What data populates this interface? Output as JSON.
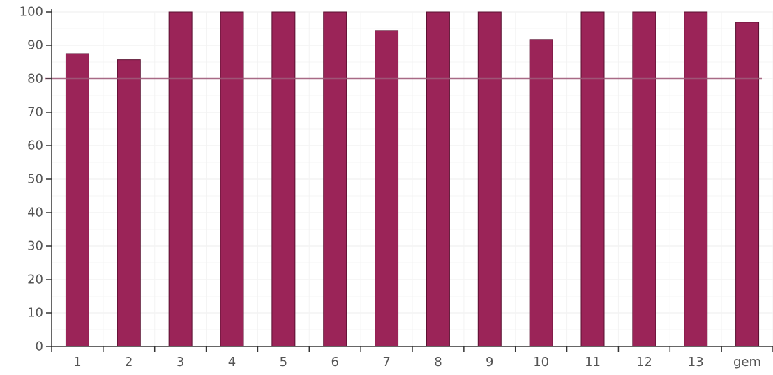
{
  "chart_data": {
    "type": "bar",
    "categories": [
      "1",
      "2",
      "3",
      "4",
      "5",
      "6",
      "7",
      "8",
      "9",
      "10",
      "11",
      "12",
      "13",
      "gem"
    ],
    "values": [
      87.5,
      85.7,
      100,
      100,
      100,
      100,
      94.4,
      100,
      100,
      91.7,
      100,
      100,
      100,
      96.9
    ],
    "ylim": [
      0,
      100
    ],
    "yticks": [
      0,
      10,
      20,
      30,
      40,
      50,
      60,
      70,
      80,
      90,
      100
    ],
    "reference_line": 80,
    "grid": true,
    "title": "",
    "xlabel": "",
    "ylabel": ""
  },
  "colors": {
    "bar_fill": "#9b2458",
    "bar_stroke": "#5a0f30",
    "reference_line": "#9e5a7a",
    "axis": "#333333",
    "grid": "#eeeeee",
    "tick_text": "#555555"
  }
}
